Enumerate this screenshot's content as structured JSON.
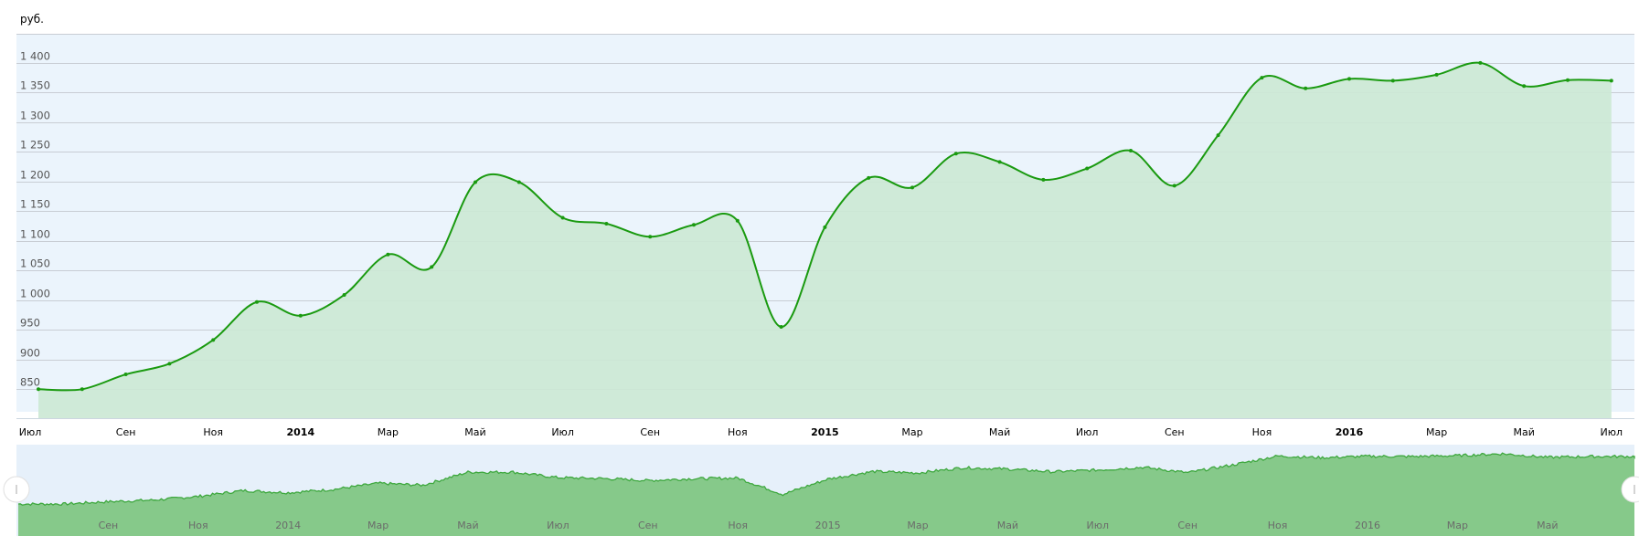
{
  "chart_data": {
    "type": "area",
    "unit_label": "руб.",
    "x": [
      "2013-07",
      "2013-08",
      "2013-09",
      "2013-10",
      "2013-11",
      "2013-12",
      "2014-01",
      "2014-02",
      "2014-03",
      "2014-04",
      "2014-05",
      "2014-06",
      "2014-07",
      "2014-08",
      "2014-09",
      "2014-10",
      "2014-11",
      "2014-12",
      "2015-01",
      "2015-02",
      "2015-03",
      "2015-04",
      "2015-05",
      "2015-06",
      "2015-07",
      "2015-08",
      "2015-09",
      "2015-10",
      "2015-11",
      "2015-12",
      "2016-01",
      "2016-02",
      "2016-03",
      "2016-04",
      "2016-05",
      "2016-06",
      "2016-07"
    ],
    "values": [
      850,
      850,
      875,
      893,
      933,
      997,
      974,
      1009,
      1077,
      1056,
      1199,
      1199,
      1139,
      1129,
      1107,
      1127,
      1134,
      955,
      1123,
      1206,
      1190,
      1247,
      1233,
      1203,
      1222,
      1252,
      1193,
      1278,
      1375,
      1357,
      1373,
      1370,
      1380,
      1400,
      1361,
      1371,
      1370
    ],
    "yticks": [
      "850",
      "900",
      "950",
      "1 000",
      "1 050",
      "1 100",
      "1 150",
      "1 200",
      "1 250",
      "1 300",
      "1 350",
      "1 400"
    ],
    "ytick_values": [
      850,
      900,
      950,
      1000,
      1050,
      1100,
      1150,
      1200,
      1250,
      1300,
      1350,
      1400
    ],
    "ylim": [
      812,
      1449
    ],
    "grid": true,
    "xticks": [
      {
        "label": "Июл",
        "month": 0,
        "bold": false
      },
      {
        "label": "Сен",
        "month": 2,
        "bold": false
      },
      {
        "label": "Ноя",
        "month": 4,
        "bold": false
      },
      {
        "label": "2014",
        "month": 6,
        "bold": true
      },
      {
        "label": "Мар",
        "month": 8,
        "bold": false
      },
      {
        "label": "Май",
        "month": 10,
        "bold": false
      },
      {
        "label": "Июл",
        "month": 12,
        "bold": false
      },
      {
        "label": "Сен",
        "month": 14,
        "bold": false
      },
      {
        "label": "Ноя",
        "month": 16,
        "bold": false
      },
      {
        "label": "2015",
        "month": 18,
        "bold": true
      },
      {
        "label": "Мар",
        "month": 20,
        "bold": false
      },
      {
        "label": "Май",
        "month": 22,
        "bold": false
      },
      {
        "label": "Июл",
        "month": 24,
        "bold": false
      },
      {
        "label": "Сен",
        "month": 26,
        "bold": false
      },
      {
        "label": "Ноя",
        "month": 28,
        "bold": false
      },
      {
        "label": "2016",
        "month": 30,
        "bold": true
      },
      {
        "label": "Мар",
        "month": 32,
        "bold": false
      },
      {
        "label": "Май",
        "month": 34,
        "bold": false
      },
      {
        "label": "Июл",
        "month": 36,
        "bold": false
      }
    ],
    "navigator_xticks": [
      {
        "label": "Сен",
        "month": 2
      },
      {
        "label": "Ноя",
        "month": 4
      },
      {
        "label": "2014",
        "month": 6
      },
      {
        "label": "Мар",
        "month": 8
      },
      {
        "label": "Май",
        "month": 10
      },
      {
        "label": "Июл",
        "month": 12
      },
      {
        "label": "Сен",
        "month": 14
      },
      {
        "label": "Ноя",
        "month": 16
      },
      {
        "label": "2015",
        "month": 18
      },
      {
        "label": "Мар",
        "month": 20
      },
      {
        "label": "Май",
        "month": 22
      },
      {
        "label": "Июл",
        "month": 24
      },
      {
        "label": "Сен",
        "month": 26
      },
      {
        "label": "Ноя",
        "month": 28
      },
      {
        "label": "2016",
        "month": 30
      },
      {
        "label": "Мар",
        "month": 32
      },
      {
        "label": "Май",
        "month": 34
      }
    ],
    "colors": {
      "line": "#1a9a10",
      "area": "#cce8d5",
      "plot_bg": "#ebf4fc",
      "navigator_fill": "#86c98a",
      "navigator_line": "#3ea83e",
      "navigator_bg": "#e6f0fa",
      "grid": "#c8cdd4"
    }
  }
}
